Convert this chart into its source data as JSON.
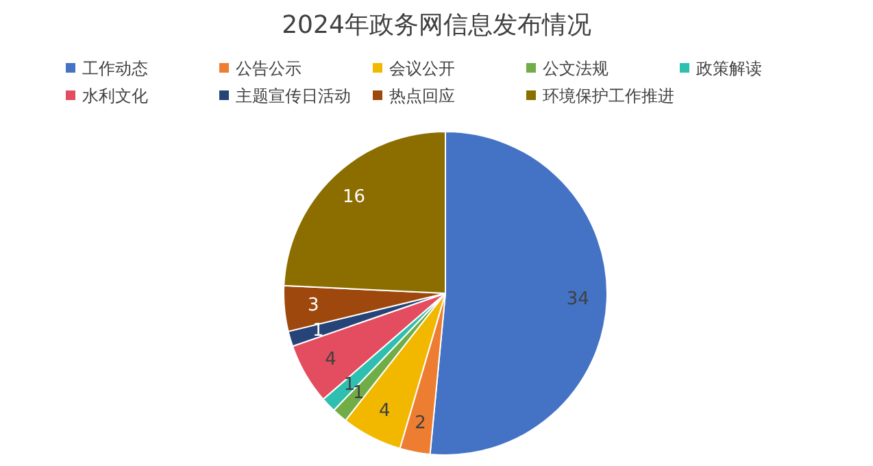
{
  "chart_data": {
    "type": "pie",
    "title": "2024年政务网信息发布情况",
    "categories": [
      "工作动态",
      "公告公示",
      "会议公开",
      "公文法规",
      "政策解读",
      "水利文化",
      "主题宣传日活动",
      "热点回应",
      "环境保护工作推进"
    ],
    "values": [
      34,
      2,
      4,
      1,
      1,
      4,
      1,
      3,
      16
    ],
    "colors": [
      "#4472c4",
      "#ed7d31",
      "#f2b800",
      "#70ad47",
      "#2ebfb0",
      "#e34d5f",
      "#264478",
      "#9e480e",
      "#8c6d00"
    ],
    "data_labels": true,
    "legend": "top"
  }
}
